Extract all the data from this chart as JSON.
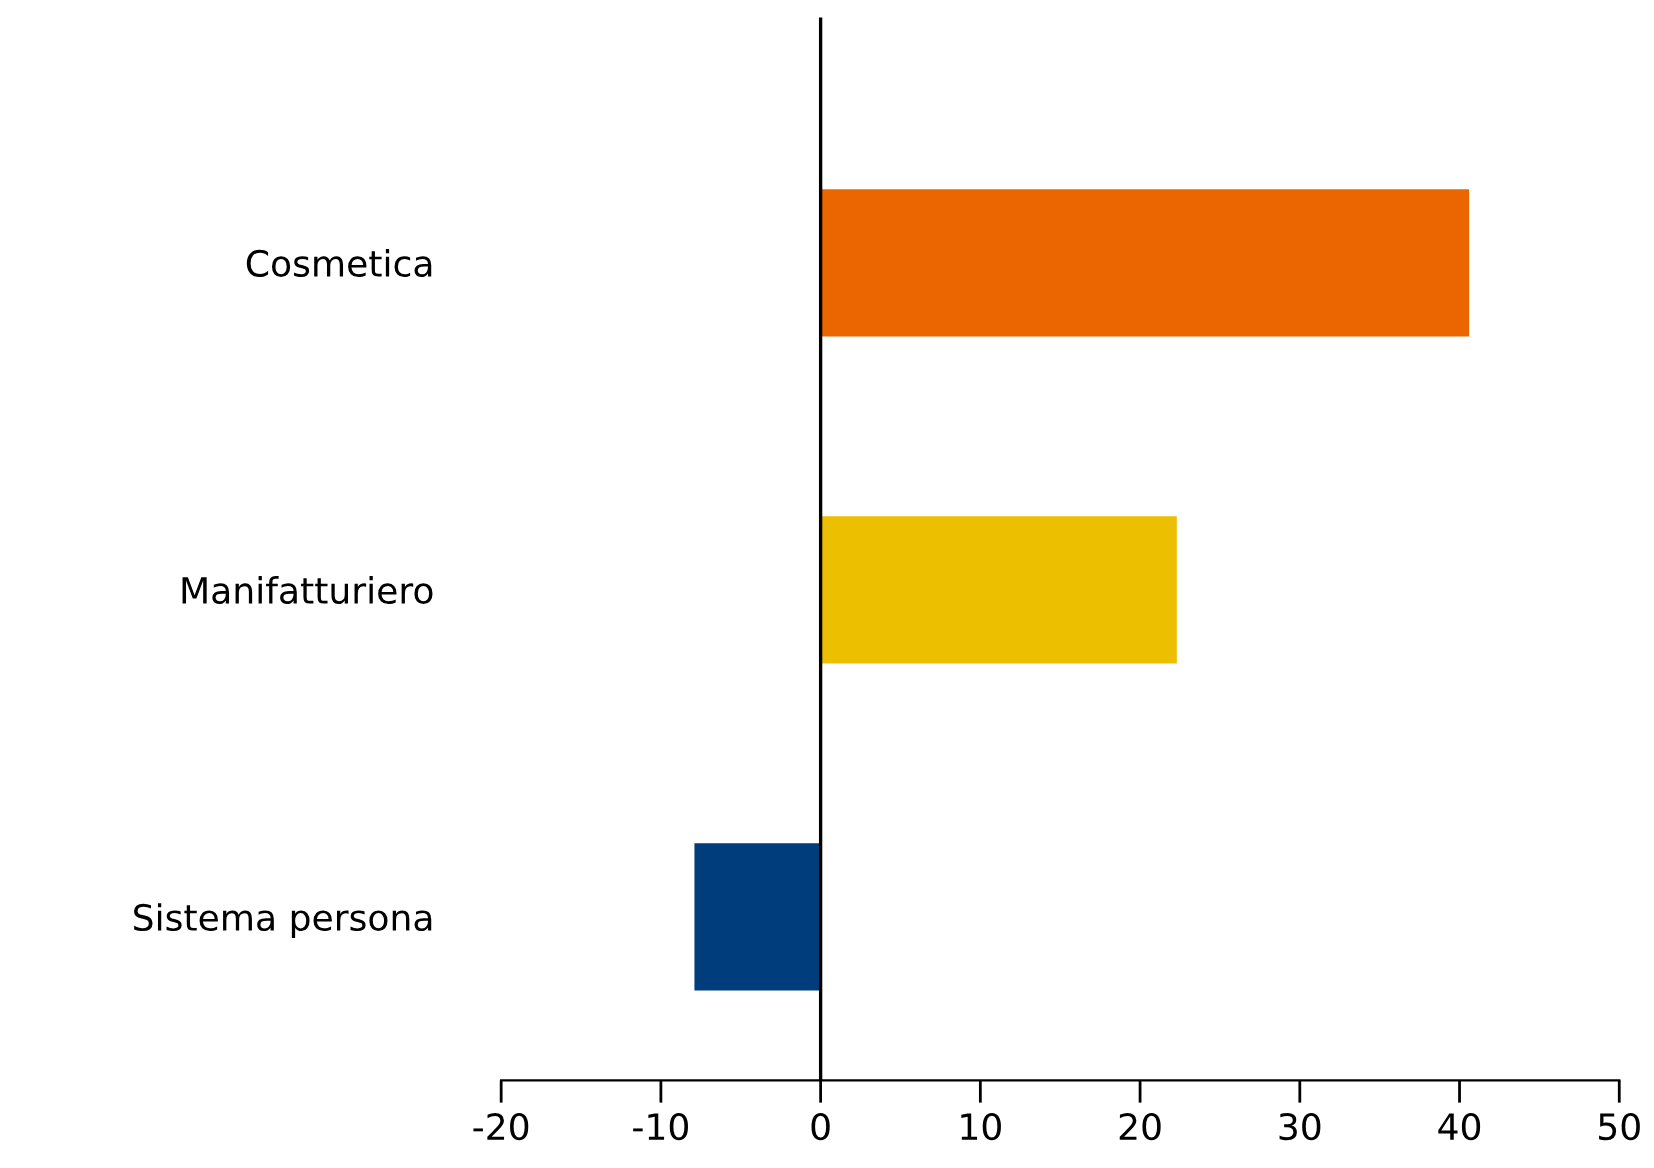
{
  "chart_data": {
    "type": "bar",
    "orientation": "horizontal",
    "categories": [
      "Cosmetica",
      "Manifatturiero",
      "Sistema persona"
    ],
    "values": [
      40.6,
      22.3,
      -7.9
    ],
    "colors": [
      "#ec6600",
      "#ecbf00",
      "#003d7c"
    ],
    "xlim": [
      -20,
      50
    ],
    "xticks": [
      -20,
      -10,
      0,
      10,
      20,
      30,
      40,
      50
    ],
    "grid": false,
    "legend": false,
    "ref_lines": [
      {
        "axis": "x",
        "value": 0,
        "color": "#000000",
        "line_style": "solid"
      }
    ]
  }
}
